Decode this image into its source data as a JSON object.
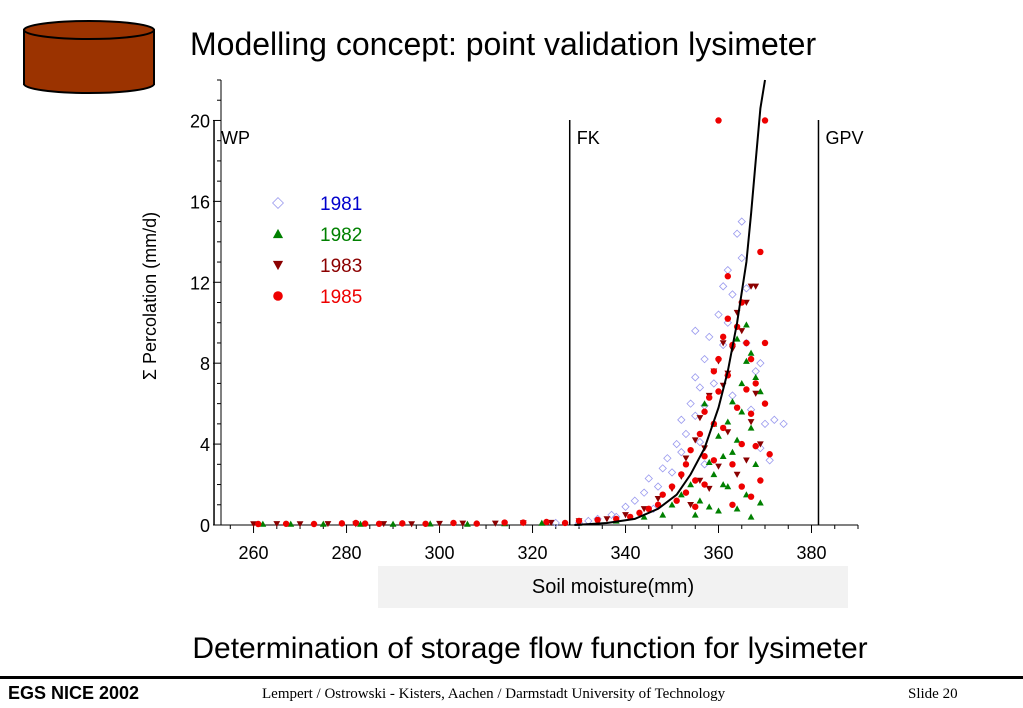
{
  "slide": {
    "title": "Modelling concept: point validation lysimeter",
    "subtitle": "Determination of storage flow function for lysimeter",
    "icon": "cylinder-icon",
    "icon_color": "#9b3300"
  },
  "footer": {
    "left": "EGS NICE 2002",
    "center": "Lempert / Ostrowski  - Kisters, Aachen / Darmstadt University of Technology",
    "right": "Slide  20"
  },
  "chart_data": {
    "type": "scatter",
    "xlabel": "Soil moisture(mm)",
    "ylabel": "Σ Percolation (mm/d)",
    "xlim": [
      253,
      390
    ],
    "ylim": [
      0,
      22
    ],
    "xticks": [
      260,
      280,
      300,
      320,
      340,
      360,
      380
    ],
    "yticks": [
      0,
      4,
      8,
      12,
      16,
      20
    ],
    "grid": false,
    "legend_position": "upper-left",
    "reference_lines": [
      {
        "label": "WP",
        "x": 251.5
      },
      {
        "label": "FK",
        "x": 328
      },
      {
        "label": "GPV",
        "x": 381.5
      }
    ],
    "series": [
      {
        "name": "1981",
        "marker": "diamond-open",
        "color": "#0000cc",
        "marker_color": "#9999ee",
        "points": [
          [
            325,
            0.1
          ],
          [
            330,
            0.1
          ],
          [
            334,
            0.3
          ],
          [
            337,
            0.5
          ],
          [
            340,
            0.9
          ],
          [
            342,
            1.2
          ],
          [
            344,
            1.6
          ],
          [
            345,
            2.3
          ],
          [
            347,
            1.9
          ],
          [
            348,
            2.8
          ],
          [
            349,
            3.3
          ],
          [
            350,
            2.6
          ],
          [
            351,
            4.0
          ],
          [
            352,
            3.6
          ],
          [
            352,
            5.2
          ],
          [
            353,
            4.5
          ],
          [
            354,
            6.0
          ],
          [
            355,
            5.4
          ],
          [
            355,
            7.3
          ],
          [
            355,
            9.6
          ],
          [
            356,
            6.8
          ],
          [
            357,
            8.2
          ],
          [
            357,
            5.9
          ],
          [
            358,
            9.3
          ],
          [
            359,
            7.0
          ],
          [
            360,
            10.4
          ],
          [
            361,
            8.9
          ],
          [
            361,
            11.8
          ],
          [
            362,
            12.6
          ],
          [
            362,
            10.0
          ],
          [
            363,
            11.4
          ],
          [
            364,
            14.4
          ],
          [
            365,
            13.2
          ],
          [
            365,
            15.0
          ],
          [
            366,
            11.7
          ],
          [
            367,
            5.7
          ],
          [
            368,
            7.6
          ],
          [
            369,
            3.8
          ],
          [
            370,
            5.0
          ],
          [
            371,
            3.2
          ],
          [
            372,
            5.2
          ],
          [
            374,
            5.0
          ],
          [
            369,
            8.0
          ],
          [
            356,
            4.1
          ],
          [
            346,
            0.8
          ],
          [
            338,
            0.4
          ],
          [
            332,
            0.2
          ],
          [
            357,
            3.0
          ],
          [
            363,
            6.4
          ],
          [
            366,
            9.0
          ]
        ]
      },
      {
        "name": "1982",
        "marker": "triangle-up",
        "color": "#008000",
        "points": [
          [
            262,
            0.05
          ],
          [
            268,
            0.05
          ],
          [
            275,
            0.05
          ],
          [
            283,
            0.05
          ],
          [
            290,
            0.05
          ],
          [
            298,
            0.06
          ],
          [
            306,
            0.05
          ],
          [
            314,
            0.07
          ],
          [
            322,
            0.1
          ],
          [
            330,
            0.1
          ],
          [
            338,
            0.2
          ],
          [
            344,
            0.4
          ],
          [
            348,
            0.5
          ],
          [
            350,
            1.0
          ],
          [
            352,
            1.5
          ],
          [
            354,
            2.0
          ],
          [
            356,
            1.2
          ],
          [
            358,
            3.1
          ],
          [
            359,
            2.5
          ],
          [
            360,
            4.4
          ],
          [
            361,
            3.4
          ],
          [
            362,
            5.1
          ],
          [
            363,
            6.1
          ],
          [
            364,
            4.2
          ],
          [
            365,
            7.0
          ],
          [
            366,
            8.1
          ],
          [
            366,
            9.9
          ],
          [
            367,
            8.5
          ],
          [
            368,
            7.3
          ],
          [
            369,
            6.6
          ],
          [
            365,
            5.6
          ],
          [
            363,
            3.6
          ],
          [
            361,
            2.0
          ],
          [
            367,
            4.8
          ],
          [
            368,
            3.0
          ],
          [
            366,
            1.5
          ],
          [
            364,
            0.8
          ],
          [
            362,
            1.9
          ],
          [
            360,
            0.7
          ],
          [
            358,
            0.9
          ],
          [
            355,
            0.5
          ],
          [
            369,
            1.1
          ],
          [
            367,
            0.4
          ],
          [
            357,
            6.0
          ],
          [
            359,
            5.0
          ],
          [
            362,
            7.5
          ],
          [
            364,
            9.2
          ]
        ]
      },
      {
        "name": "1983",
        "marker": "triangle-down",
        "color": "#8b0000",
        "points": [
          [
            260,
            0.05
          ],
          [
            265,
            0.06
          ],
          [
            270,
            0.05
          ],
          [
            276,
            0.06
          ],
          [
            282,
            0.05
          ],
          [
            288,
            0.06
          ],
          [
            294,
            0.05
          ],
          [
            300,
            0.07
          ],
          [
            305,
            0.08
          ],
          [
            312,
            0.08
          ],
          [
            318,
            0.1
          ],
          [
            324,
            0.12
          ],
          [
            330,
            0.2
          ],
          [
            336,
            0.3
          ],
          [
            340,
            0.5
          ],
          [
            344,
            0.8
          ],
          [
            347,
            1.3
          ],
          [
            350,
            1.8
          ],
          [
            352,
            2.4
          ],
          [
            353,
            3.3
          ],
          [
            355,
            4.2
          ],
          [
            356,
            5.3
          ],
          [
            357,
            3.8
          ],
          [
            358,
            6.4
          ],
          [
            359,
            7.6
          ],
          [
            360,
            8.1
          ],
          [
            361,
            6.9
          ],
          [
            361,
            9.0
          ],
          [
            362,
            7.5
          ],
          [
            363,
            8.7
          ],
          [
            364,
            10.5
          ],
          [
            365,
            9.6
          ],
          [
            366,
            11.0
          ],
          [
            367,
            11.8
          ],
          [
            368,
            11.8
          ],
          [
            367,
            5.1
          ],
          [
            366,
            3.2
          ],
          [
            364,
            2.5
          ],
          [
            362,
            4.6
          ],
          [
            360,
            2.9
          ],
          [
            358,
            1.8
          ],
          [
            356,
            2.2
          ],
          [
            354,
            1.0
          ],
          [
            368,
            6.5
          ],
          [
            369,
            4.0
          ]
        ]
      },
      {
        "name": "1985",
        "marker": "circle",
        "color": "#ee0000",
        "points": [
          [
            261,
            0.05
          ],
          [
            267,
            0.06
          ],
          [
            273,
            0.05
          ],
          [
            279,
            0.08
          ],
          [
            282,
            0.1
          ],
          [
            284,
            0.07
          ],
          [
            287,
            0.06
          ],
          [
            292,
            0.08
          ],
          [
            297,
            0.06
          ],
          [
            303,
            0.1
          ],
          [
            308,
            0.07
          ],
          [
            314,
            0.12
          ],
          [
            318,
            0.12
          ],
          [
            323,
            0.15
          ],
          [
            327,
            0.1
          ],
          [
            330,
            0.2
          ],
          [
            334,
            0.25
          ],
          [
            338,
            0.3
          ],
          [
            341,
            0.4
          ],
          [
            343,
            0.6
          ],
          [
            345,
            0.8
          ],
          [
            347,
            1.0
          ],
          [
            348,
            1.5
          ],
          [
            350,
            1.9
          ],
          [
            351,
            1.2
          ],
          [
            352,
            2.5
          ],
          [
            353,
            3.0
          ],
          [
            354,
            3.7
          ],
          [
            355,
            2.2
          ],
          [
            356,
            4.5
          ],
          [
            357,
            3.4
          ],
          [
            357,
            5.6
          ],
          [
            358,
            6.3
          ],
          [
            359,
            5.0
          ],
          [
            359,
            7.6
          ],
          [
            360,
            8.2
          ],
          [
            360,
            6.6
          ],
          [
            361,
            9.3
          ],
          [
            361,
            4.8
          ],
          [
            362,
            10.2
          ],
          [
            362,
            7.4
          ],
          [
            363,
            8.9
          ],
          [
            363,
            3.0
          ],
          [
            364,
            9.8
          ],
          [
            364,
            5.8
          ],
          [
            365,
            11.0
          ],
          [
            365,
            4.0
          ],
          [
            366,
            9.0
          ],
          [
            366,
            6.7
          ],
          [
            367,
            5.5
          ],
          [
            367,
            8.2
          ],
          [
            368,
            7.0
          ],
          [
            368,
            3.9
          ],
          [
            369,
            13.5
          ],
          [
            369,
            2.2
          ],
          [
            370,
            9.0
          ],
          [
            370,
            6.0
          ],
          [
            371,
            3.5
          ],
          [
            362,
            12.3
          ],
          [
            360,
            20.0
          ],
          [
            370,
            20.0
          ],
          [
            357,
            2.0
          ],
          [
            355,
            0.9
          ],
          [
            353,
            1.6
          ],
          [
            365,
            1.9
          ],
          [
            363,
            1.0
          ],
          [
            367,
            1.4
          ],
          [
            359,
            3.2
          ]
        ]
      }
    ],
    "fitted_curve": {
      "name": "storage flow function",
      "color": "#000000",
      "points": [
        [
          329,
          0.0
        ],
        [
          336,
          0.1
        ],
        [
          342,
          0.3
        ],
        [
          347,
          0.8
        ],
        [
          351,
          1.5
        ],
        [
          354,
          2.5
        ],
        [
          357,
          3.8
        ],
        [
          360,
          5.8
        ],
        [
          362,
          7.6
        ],
        [
          364,
          10.0
        ],
        [
          366,
          13.0
        ],
        [
          367,
          15.4
        ],
        [
          368,
          18.0
        ],
        [
          369,
          20.6
        ],
        [
          370,
          22.0
        ]
      ]
    }
  }
}
